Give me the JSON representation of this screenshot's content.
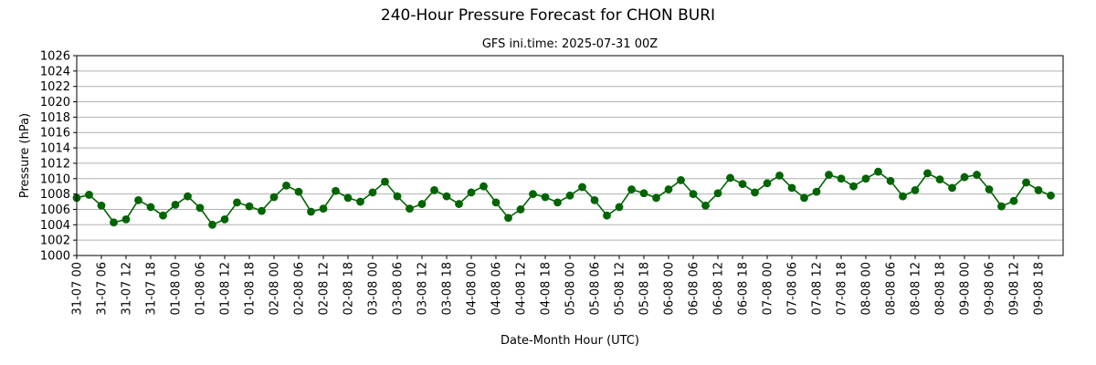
{
  "chart_data": {
    "type": "line",
    "title": "240-Hour Pressure Forecast for CHON BURI",
    "subtitle": "GFS ini.time: 2025-07-31 00Z",
    "xlabel": "Date-Month Hour (UTC)",
    "ylabel": "Pressure (hPa)",
    "ylim": [
      1000,
      1026
    ],
    "yticks": [
      1000,
      1002,
      1004,
      1006,
      1008,
      1010,
      1012,
      1014,
      1016,
      1018,
      1020,
      1022,
      1024,
      1026
    ],
    "xlim_hours": [
      0,
      240
    ],
    "x_step_hours": 3,
    "xtick_labels": [
      "31-07 00",
      "31-07 06",
      "31-07 12",
      "31-07 18",
      "01-08 00",
      "01-08 06",
      "01-08 12",
      "01-08 18",
      "02-08 00",
      "02-08 06",
      "02-08 12",
      "02-08 18",
      "03-08 00",
      "03-08 06",
      "03-08 12",
      "03-08 18",
      "04-08 00",
      "04-08 06",
      "04-08 12",
      "04-08 18",
      "05-08 00",
      "05-08 06",
      "05-08 12",
      "05-08 18",
      "06-08 00",
      "06-08 06",
      "06-08 12",
      "06-08 18",
      "07-08 00",
      "07-08 06",
      "07-08 12",
      "07-08 18",
      "08-08 00",
      "08-08 06",
      "08-08 12",
      "08-08 18",
      "09-08 00",
      "09-08 06",
      "09-08 12",
      "09-08 18"
    ],
    "grid": "horizontal",
    "line_color": "#006400",
    "series": [
      {
        "values": [
          1007.5,
          1007.9,
          1006.5,
          1004.3,
          1004.7,
          1007.2,
          1006.3,
          1005.2,
          1006.6,
          1007.7,
          1006.2,
          1004.0,
          1004.7,
          1006.9,
          1006.4,
          1005.8,
          1007.6,
          1009.1,
          1008.3,
          1005.7,
          1006.1,
          1008.4,
          1007.5,
          1007.0,
          1008.2,
          1009.6,
          1007.7,
          1006.1,
          1006.7,
          1008.5,
          1007.7,
          1006.7,
          1008.2,
          1009.0,
          1006.9,
          1004.9,
          1006.0,
          1008.0,
          1007.6,
          1006.9,
          1007.8,
          1008.9,
          1007.2,
          1005.2,
          1006.3,
          1008.6,
          1008.1,
          1007.5,
          1008.6,
          1009.8,
          1008.0,
          1006.5,
          1008.1,
          1010.1,
          1009.3,
          1008.2,
          1009.4,
          1010.4,
          1008.8,
          1007.5,
          1008.3,
          1010.5,
          1010.0,
          1009.0,
          1010.0,
          1010.9,
          1009.7,
          1007.7,
          1008.5,
          1010.7,
          1009.9,
          1008.8,
          1010.2,
          1010.5,
          1008.6,
          1006.4,
          1007.1,
          1009.5,
          1008.5,
          1007.8
        ]
      }
    ]
  }
}
